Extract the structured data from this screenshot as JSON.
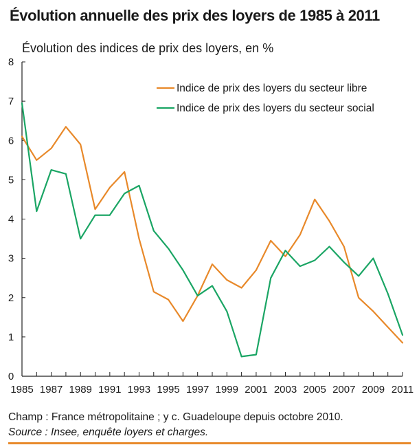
{
  "chart_data": {
    "type": "line",
    "title": "Évolution annuelle des prix des loyers de 1985 à 2011",
    "subtitle": "Évolution des indices de prix des loyers, en %",
    "xlabel": "",
    "ylabel": "",
    "ylim": [
      0,
      8
    ],
    "yticks": [
      "0",
      "1",
      "2",
      "3",
      "4",
      "5",
      "6",
      "7",
      "8"
    ],
    "xticks": [
      "1985",
      "1987",
      "1989",
      "1991",
      "1993",
      "1995",
      "1997",
      "1999",
      "2001",
      "2003",
      "2005",
      "2007",
      "2009",
      "2011"
    ],
    "x": [
      1985,
      1986,
      1987,
      1988,
      1989,
      1990,
      1991,
      1992,
      1993,
      1994,
      1995,
      1996,
      1997,
      1998,
      1999,
      2000,
      2001,
      2002,
      2003,
      2004,
      2005,
      2006,
      2007,
      2008,
      2009,
      2010,
      2011
    ],
    "xlim": [
      1985,
      2011
    ],
    "legend_position": "top-right",
    "series": [
      {
        "name": "Indice de prix des loyers du secteur libre",
        "color": "#e8892a",
        "values": [
          6.1,
          5.5,
          5.8,
          6.35,
          5.9,
          4.25,
          4.8,
          5.2,
          3.5,
          2.15,
          1.95,
          1.4,
          2.05,
          2.85,
          2.45,
          2.25,
          2.7,
          3.45,
          3.05,
          3.6,
          4.5,
          3.95,
          3.3,
          2.0,
          1.65,
          1.25,
          0.85
        ]
      },
      {
        "name": "Indice de prix des loyers du secteur social",
        "color": "#1aa564",
        "values": [
          6.95,
          4.2,
          5.25,
          5.15,
          3.5,
          4.1,
          4.1,
          4.65,
          4.85,
          3.7,
          3.25,
          2.7,
          2.05,
          2.3,
          1.65,
          0.5,
          0.55,
          2.5,
          3.2,
          2.8,
          2.95,
          3.3,
          2.9,
          2.55,
          3.0,
          2.1,
          1.05
        ]
      }
    ]
  },
  "footer": {
    "champ": "Champ : France métropolitaine ; y c. Guadeloupe depuis octobre 2010.",
    "source": "Source : Insee, enquête loyers et charges."
  },
  "colors": {
    "accent_rule": "#e8892a",
    "axis": "#222222"
  }
}
